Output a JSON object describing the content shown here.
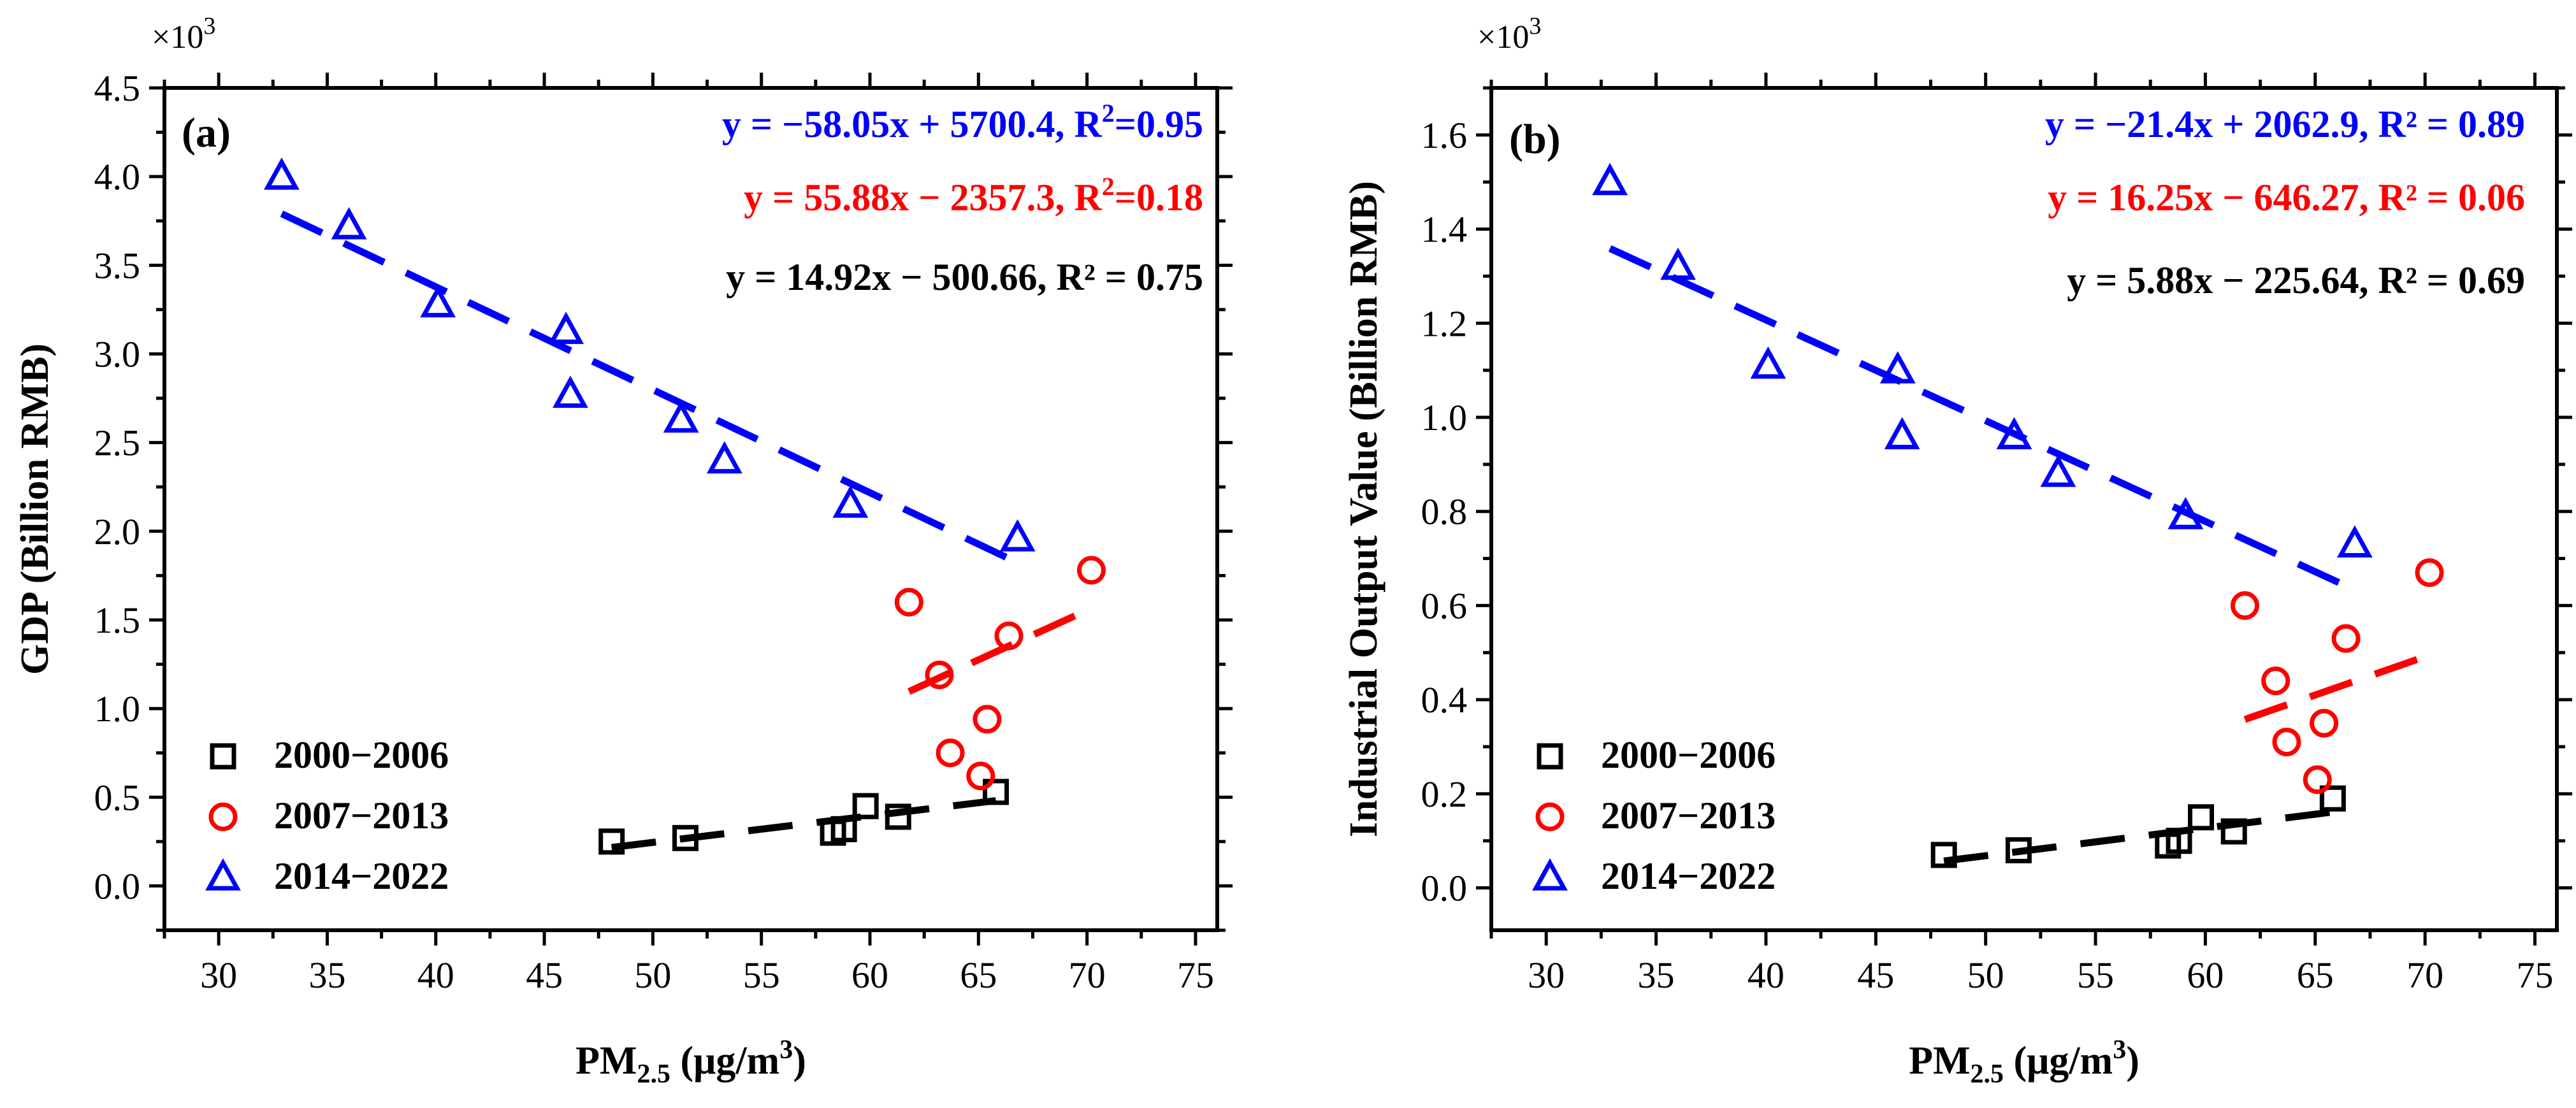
{
  "chart_data": [
    {
      "type": "scatter",
      "panel_label": "(a)",
      "ylabel": "GDP (Billion RMB)",
      "xlabel_main": "PM",
      "xlabel_sub": "2.5",
      "xlabel_unit_pre": " (μg/m",
      "xlabel_unit_sup": "3",
      "xlabel_unit_post": ")",
      "y_multiplier": "×10",
      "y_multiplier_exp": "3",
      "xlim": [
        27.5,
        76
      ],
      "ylim": [
        -0.25,
        4.5
      ],
      "xticks": [
        30,
        35,
        40,
        45,
        50,
        55,
        60,
        65,
        70,
        75
      ],
      "yticks": [
        "0.0",
        "0.5",
        "1.0",
        "1.5",
        "2.0",
        "2.5",
        "3.0",
        "3.5",
        "4.0",
        "4.5"
      ],
      "ytick_values": [
        0,
        0.5,
        1.0,
        1.5,
        2.0,
        2.5,
        3.0,
        3.5,
        4.0,
        4.5
      ],
      "series": [
        {
          "name": "2000−2006",
          "color": "#000000",
          "marker": "square",
          "x": [
            48.1,
            51.5,
            58.3,
            58.8,
            59.8,
            61.3,
            65.8
          ],
          "y": [
            0.25,
            0.27,
            0.3,
            0.32,
            0.45,
            0.39,
            0.53
          ],
          "fit": {
            "slope": 14.92,
            "intercept": -500.66,
            "xrange": [
              48.1,
              65.8
            ]
          },
          "equation": "y = 14.92x − 500.66, R² = 0.75"
        },
        {
          "name": "2007−2013",
          "color": "#ff0000",
          "marker": "circle",
          "x": [
            61.8,
            63.2,
            63.7,
            65.1,
            65.4,
            66.4,
            70.2
          ],
          "y": [
            1.6,
            1.19,
            0.75,
            0.62,
            0.94,
            1.41,
            1.78
          ],
          "fit": {
            "slope": 55.88,
            "intercept": -2357.3,
            "xrange": [
              61.8,
              70.2
            ]
          },
          "equation": "y = 55.88x − 2357.3, R",
          "equation_sup": "2",
          "equation_post": "=0.18"
        },
        {
          "name": "2014−2022",
          "color": "#0000ff",
          "marker": "triangle",
          "x": [
            32.9,
            36.0,
            40.1,
            46.0,
            46.2,
            51.3,
            53.3,
            59.1,
            66.8
          ],
          "y": [
            4.0,
            3.72,
            3.28,
            3.13,
            2.77,
            2.63,
            2.4,
            2.15,
            1.96
          ],
          "fit": {
            "slope": -58.05,
            "intercept": 5700.4,
            "xrange": [
              32.9,
              66.8
            ]
          },
          "equation": "y = −58.05x + 5700.4, R",
          "equation_sup": "2",
          "equation_post": "=0.95"
        }
      ],
      "legend_location": "bottom-left"
    },
    {
      "type": "scatter",
      "panel_label": "(b)",
      "ylabel": "Industrial Output Value (Billion RMB)",
      "xlabel_main": "PM",
      "xlabel_sub": "2.5",
      "xlabel_unit_pre": " (μg/m",
      "xlabel_unit_sup": "3",
      "xlabel_unit_post": ")",
      "y_multiplier": "×10",
      "y_multiplier_exp": "3",
      "xlim": [
        27.5,
        76
      ],
      "ylim": [
        -0.09,
        1.7
      ],
      "xticks": [
        30,
        35,
        40,
        45,
        50,
        55,
        60,
        65,
        70,
        75
      ],
      "yticks": [
        "0.0",
        "0.2",
        "0.4",
        "0.6",
        "0.8",
        "1.0",
        "1.2",
        "1.4",
        "1.6"
      ],
      "ytick_values": [
        0,
        0.2,
        0.4,
        0.6,
        0.8,
        1.0,
        1.2,
        1.4,
        1.6
      ],
      "series": [
        {
          "name": "2000−2006",
          "color": "#000000",
          "marker": "square",
          "x": [
            48.1,
            51.5,
            58.3,
            58.8,
            59.8,
            61.3,
            65.8
          ],
          "y": [
            0.07,
            0.08,
            0.09,
            0.1,
            0.15,
            0.12,
            0.19
          ],
          "fit": {
            "slope": 5.88,
            "intercept": -225.64,
            "xrange": [
              48.1,
              65.8
            ]
          },
          "equation": "y = 5.88x − 225.64, R² = 0.69"
        },
        {
          "name": "2007−2013",
          "color": "#ff0000",
          "marker": "circle",
          "x": [
            61.8,
            63.2,
            63.7,
            65.1,
            65.4,
            66.4,
            70.2
          ],
          "y": [
            0.6,
            0.44,
            0.31,
            0.23,
            0.35,
            0.53,
            0.67
          ],
          "fit": {
            "slope": 16.25,
            "intercept": -646.27,
            "xrange": [
              61.8,
              70.2
            ]
          },
          "equation": "y = 16.25x − 646.27, R² = 0.06"
        },
        {
          "name": "2014−2022",
          "color": "#0000ff",
          "marker": "triangle",
          "x": [
            32.9,
            36.0,
            40.1,
            46.0,
            46.2,
            51.3,
            53.3,
            59.1,
            66.8
          ],
          "y": [
            1.5,
            1.32,
            1.11,
            1.1,
            0.96,
            0.96,
            0.88,
            0.79,
            0.73
          ],
          "fit": {
            "slope": -21.4,
            "intercept": 2062.9,
            "xrange": [
              32.9,
              66.8
            ]
          },
          "equation": "y = −21.4x + 2062.9, R² = 0.89"
        }
      ],
      "legend_location": "bottom-left"
    }
  ]
}
